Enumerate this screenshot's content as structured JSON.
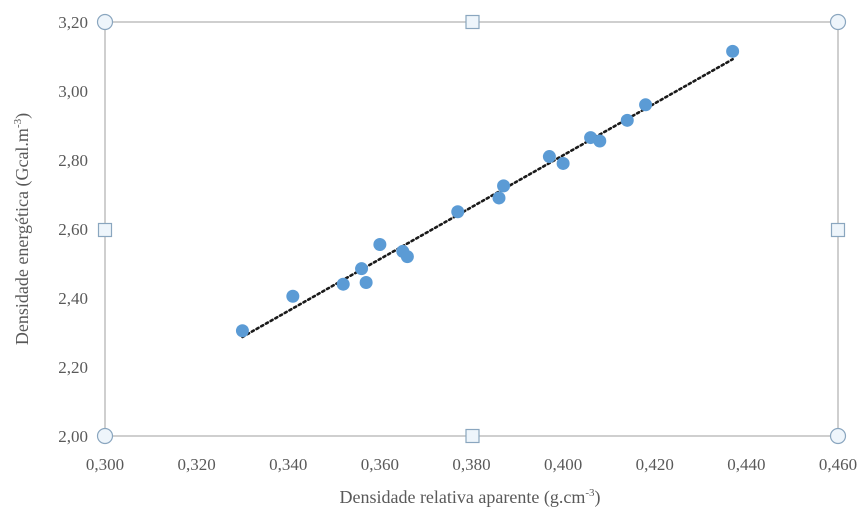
{
  "chart_data": {
    "type": "scatter",
    "title": "",
    "xlabel": "Densidade relativa aparente (g.cm",
    "xlabel_sup": "-3",
    "xlabel_end": ")",
    "ylabel": "Densidade energética (Gcal.m",
    "ylabel_sup": "-3",
    "ylabel_end": ")",
    "xlim": [
      0.3,
      0.46
    ],
    "ylim": [
      2.0,
      3.2
    ],
    "x_ticks": [
      0.3,
      0.32,
      0.34,
      0.36,
      0.38,
      0.4,
      0.42,
      0.44,
      0.46
    ],
    "x_tick_labels": [
      "0,300",
      "0,320",
      "0,340",
      "0,360",
      "0,380",
      "0,400",
      "0,420",
      "0,440",
      "0,460"
    ],
    "y_ticks": [
      2.0,
      2.2,
      2.4,
      2.6,
      2.8,
      3.0,
      3.2
    ],
    "y_tick_labels": [
      "2,00",
      "2,20",
      "2,40",
      "2,60",
      "2,80",
      "3,00",
      "3,20"
    ],
    "grid": false,
    "legend": "none",
    "series": [
      {
        "color": "#5b9bd5",
        "x": [
          0.33,
          0.341,
          0.352,
          0.356,
          0.357,
          0.36,
          0.365,
          0.366,
          0.377,
          0.386,
          0.387,
          0.397,
          0.4,
          0.406,
          0.408,
          0.414,
          0.418,
          0.437
        ],
        "y": [
          2.305,
          2.405,
          2.44,
          2.485,
          2.445,
          2.555,
          2.535,
          2.52,
          2.65,
          2.69,
          2.725,
          2.81,
          2.79,
          2.865,
          2.855,
          2.915,
          2.96,
          3.115
        ]
      }
    ],
    "trendline": {
      "type": "linear",
      "style": "dotted",
      "color": "#1a1a1a",
      "x_range": [
        0.33,
        0.437
      ]
    },
    "frame_color": "#bfbfbf"
  }
}
